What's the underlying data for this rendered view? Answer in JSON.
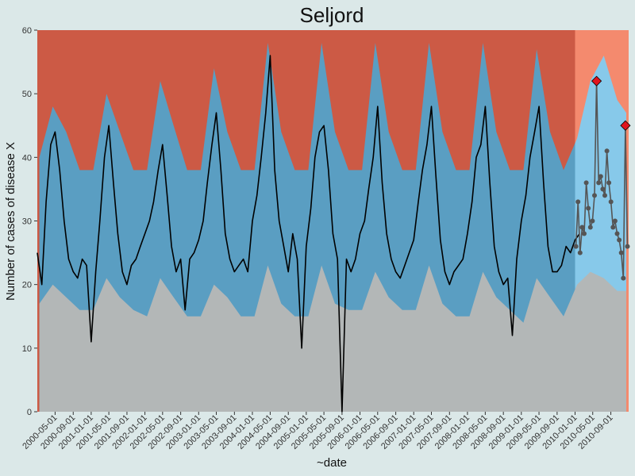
{
  "chart_data": {
    "type": "line",
    "title": "Seljord",
    "xlabel": "~date",
    "ylabel": "Number of cases of disease X",
    "ylim": [
      0,
      60
    ],
    "xlim": [
      "2000-01-01",
      "2010-12-31"
    ],
    "y_ticks": [
      0,
      10,
      20,
      30,
      40,
      50,
      60
    ],
    "x_ticks": [
      "2000-05-01",
      "2000-09-01",
      "2001-01-01",
      "2001-05-01",
      "2001-09-01",
      "2002-01-01",
      "2002-05-01",
      "2002-09-01",
      "2003-01-01",
      "2003-05-01",
      "2003-09-01",
      "2004-01-01",
      "2004-05-01",
      "2004-09-01",
      "2005-01-01",
      "2005-05-01",
      "2005-09-01",
      "2006-01-01",
      "2006-05-01",
      "2006-09-01",
      "2007-01-01",
      "2007-05-01",
      "2007-09-01",
      "2008-01-01",
      "2008-05-01",
      "2008-09-01",
      "2009-01-01",
      "2009-05-01",
      "2009-09-01",
      "2010-01-01",
      "2010-05-01",
      "2010-09-01"
    ],
    "grid": false,
    "legend": "none",
    "colors": {
      "background": "#dbe8e8",
      "low_band": "#b3b7b7",
      "normal_band": "#5a9ec2",
      "high_band": "#cc5a45",
      "low_band_current": "#b3b7b7",
      "normal_band_current": "#87c9ea",
      "high_band_current": "#f48a6e",
      "observed_line": "#000000",
      "current_points": "#555555",
      "alert_marker": "#e0141e"
    },
    "baseline_thresholds": {
      "x": [
        "2000-01-15",
        "2000-04-15",
        "2000-07-15",
        "2000-10-15",
        "2001-01-15",
        "2001-04-15",
        "2001-07-15",
        "2001-10-15",
        "2002-01-15",
        "2002-04-15",
        "2002-07-15",
        "2002-10-15",
        "2003-01-15",
        "2003-04-15",
        "2003-07-15",
        "2003-10-15",
        "2004-01-15",
        "2004-04-15",
        "2004-07-15",
        "2004-10-15",
        "2005-01-15",
        "2005-04-15",
        "2005-07-15",
        "2005-10-15",
        "2006-01-15",
        "2006-04-15",
        "2006-07-15",
        "2006-10-15",
        "2007-01-15",
        "2007-04-15",
        "2007-07-15",
        "2007-10-15",
        "2008-01-15",
        "2008-04-15",
        "2008-07-15",
        "2008-10-15",
        "2009-01-15",
        "2009-04-15",
        "2009-07-15",
        "2009-10-15",
        "2010-01-15",
        "2010-04-15",
        "2010-07-15",
        "2010-10-15",
        "2010-12-15"
      ],
      "lower": [
        17,
        20,
        18,
        16,
        16,
        21,
        18,
        16,
        15,
        21,
        18,
        15,
        15,
        20,
        18,
        15,
        15,
        23,
        17,
        15,
        15,
        23,
        17,
        16,
        16,
        22,
        18,
        16,
        16,
        23,
        17,
        15,
        15,
        22,
        18,
        16,
        14,
        21,
        18,
        15,
        20,
        22,
        21,
        19,
        19
      ],
      "upper": [
        40,
        48,
        44,
        38,
        38,
        50,
        44,
        38,
        38,
        52,
        45,
        38,
        38,
        54,
        44,
        38,
        38,
        58,
        44,
        38,
        38,
        58,
        44,
        38,
        38,
        58,
        44,
        38,
        38,
        58,
        44,
        38,
        38,
        58,
        44,
        38,
        38,
        57,
        44,
        38,
        43,
        52,
        56,
        49,
        47
      ]
    },
    "series": [
      {
        "name": "",
        "x": [
          "2000-01-01",
          "2000-02-01",
          "2000-03-01",
          "2000-04-01",
          "2000-05-01",
          "2000-06-01",
          "2000-07-01",
          "2000-08-01",
          "2000-09-01",
          "2000-10-01",
          "2000-11-01",
          "2000-12-01",
          "2001-01-01",
          "2001-02-01",
          "2001-03-01",
          "2001-04-01",
          "2001-05-01",
          "2001-06-01",
          "2001-07-01",
          "2001-08-01",
          "2001-09-01",
          "2001-10-01",
          "2001-11-01",
          "2001-12-01",
          "2002-01-01",
          "2002-02-01",
          "2002-03-01",
          "2002-04-01",
          "2002-05-01",
          "2002-06-01",
          "2002-07-01",
          "2002-08-01",
          "2002-09-01",
          "2002-10-01",
          "2002-11-01",
          "2002-12-01",
          "2003-01-01",
          "2003-02-01",
          "2003-03-01",
          "2003-04-01",
          "2003-05-01",
          "2003-06-01",
          "2003-07-01",
          "2003-08-01",
          "2003-09-01",
          "2003-10-01",
          "2003-11-01",
          "2003-12-01",
          "2004-01-01",
          "2004-02-01",
          "2004-03-01",
          "2004-04-01",
          "2004-05-01",
          "2004-06-01",
          "2004-07-01",
          "2004-08-01",
          "2004-09-01",
          "2004-10-01",
          "2004-11-01",
          "2004-12-01",
          "2005-01-01",
          "2005-02-01",
          "2005-03-01",
          "2005-04-01",
          "2005-05-01",
          "2005-06-01",
          "2005-07-01",
          "2005-08-01",
          "2005-09-01",
          "2005-10-01",
          "2005-11-01",
          "2005-12-01",
          "2006-01-01",
          "2006-02-01",
          "2006-03-01",
          "2006-04-01",
          "2006-05-01",
          "2006-06-01",
          "2006-07-01",
          "2006-08-01",
          "2006-09-01",
          "2006-10-01",
          "2006-11-01",
          "2006-12-01",
          "2007-01-01",
          "2007-02-01",
          "2007-03-01",
          "2007-04-01",
          "2007-05-01",
          "2007-06-01",
          "2007-07-01",
          "2007-08-01",
          "2007-09-01",
          "2007-10-01",
          "2007-11-01",
          "2007-12-01",
          "2008-01-01",
          "2008-02-01",
          "2008-03-01",
          "2008-04-01",
          "2008-05-01",
          "2008-06-01",
          "2008-07-01",
          "2008-08-01",
          "2008-09-01",
          "2008-10-01",
          "2008-11-01",
          "2008-12-01",
          "2009-01-01",
          "2009-02-01",
          "2009-03-01",
          "2009-04-01",
          "2009-05-01",
          "2009-06-01",
          "2009-07-01",
          "2009-08-01",
          "2009-09-01",
          "2009-10-01",
          "2009-11-01",
          "2009-12-01",
          "2010-01-01",
          "2010-02-01"
        ],
        "values": [
          25,
          20,
          33,
          42,
          44,
          38,
          30,
          24,
          22,
          21,
          24,
          23,
          11,
          22,
          30,
          40,
          45,
          36,
          28,
          22,
          20,
          23,
          24,
          26,
          28,
          30,
          33,
          38,
          42,
          34,
          26,
          22,
          24,
          16,
          24,
          25,
          27,
          30,
          36,
          42,
          47,
          38,
          28,
          24,
          22,
          23,
          24,
          22,
          30,
          34,
          40,
          47,
          56,
          38,
          30,
          26,
          22,
          28,
          24,
          10,
          26,
          32,
          40,
          44,
          45,
          38,
          28,
          24,
          0,
          24,
          22,
          24,
          28,
          30,
          35,
          40,
          48,
          36,
          28,
          24,
          22,
          21,
          23,
          25,
          27,
          33,
          38,
          42,
          48,
          37,
          27,
          22,
          20,
          22,
          23,
          24,
          28,
          33,
          40,
          42,
          48,
          36,
          26,
          22,
          20,
          21,
          12,
          24,
          30,
          34,
          40,
          44,
          48,
          36,
          26,
          22,
          22,
          23,
          26,
          25,
          27,
          28
        ]
      },
      {
        "name": "",
        "x": [
          "2010-01-07",
          "2010-01-21",
          "2010-02-04",
          "2010-02-18",
          "2010-03-04",
          "2010-03-18",
          "2010-04-01",
          "2010-04-15",
          "2010-04-29",
          "2010-05-13",
          "2010-05-27",
          "2010-06-10",
          "2010-06-24",
          "2010-07-08",
          "2010-07-22",
          "2010-08-05",
          "2010-08-19",
          "2010-09-02",
          "2010-09-16",
          "2010-09-30",
          "2010-10-14",
          "2010-10-28",
          "2010-11-11",
          "2010-11-25",
          "2010-12-09",
          "2010-12-23"
        ],
        "values": [
          26,
          33,
          25,
          29,
          28,
          36,
          32,
          29,
          30,
          34,
          52,
          36,
          37,
          35,
          34,
          41,
          36,
          33,
          29,
          30,
          28,
          27,
          25,
          21,
          45,
          26
        ]
      }
    ],
    "alerts": [
      {
        "x": "2010-05-27",
        "y": 52
      },
      {
        "x": "2010-12-09",
        "y": 45
      }
    ]
  }
}
